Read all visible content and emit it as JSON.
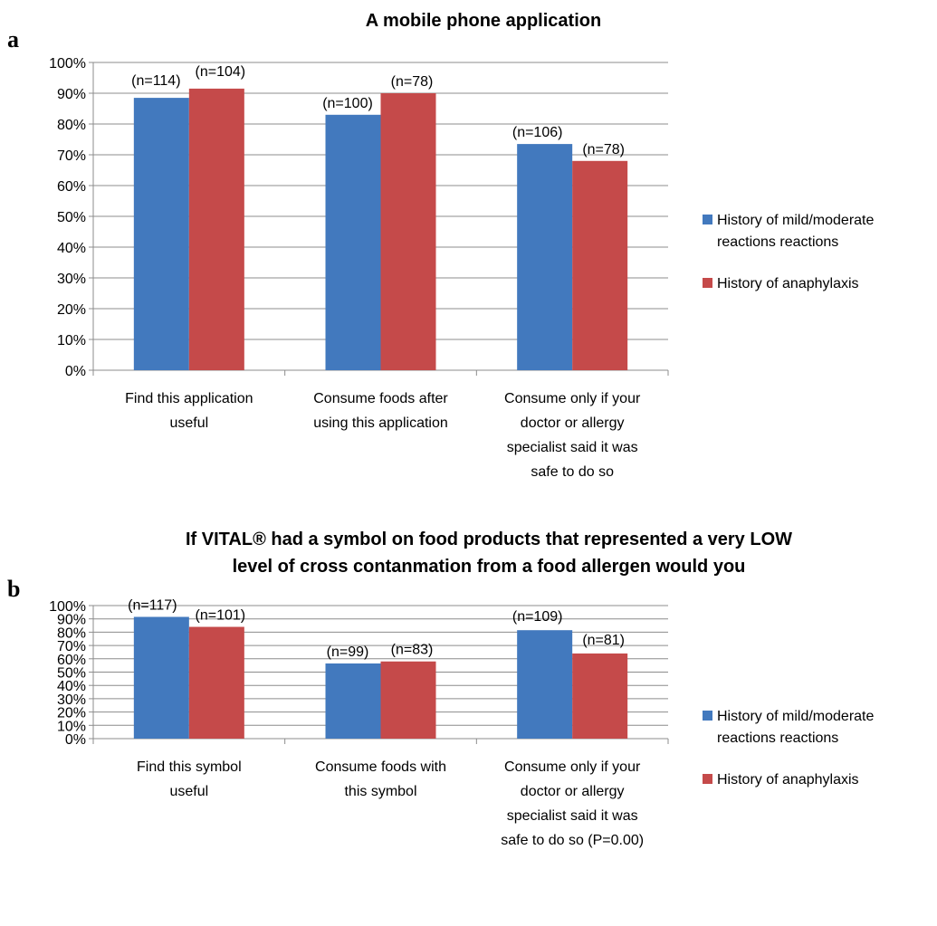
{
  "chart_data": [
    {
      "type": "bar",
      "panel": "a",
      "title": [
        "A mobile phone application"
      ],
      "categories": [
        [
          "Find this application",
          "useful"
        ],
        [
          "Consume foods after",
          "using this application"
        ],
        [
          "Consume only if your",
          "doctor or allergy",
          "specialist said it was",
          "safe to do so"
        ]
      ],
      "series": [
        {
          "name": [
            "History of mild/moderate",
            "reactions reactions"
          ],
          "color": "#4279BE",
          "values": [
            88.5,
            83,
            73.5
          ],
          "labels": [
            "(n=114)",
            "(n=100)",
            "(n=106)"
          ]
        },
        {
          "name": [
            "History of anaphylaxis"
          ],
          "color": "#C54A4A",
          "values": [
            91.5,
            90,
            68
          ],
          "labels": [
            "(n=104)",
            "(n=78)",
            "(n=78)"
          ]
        }
      ],
      "yticks": [
        "0%",
        "10%",
        "20%",
        "30%",
        "40%",
        "50%",
        "60%",
        "70%",
        "80%",
        "90%",
        "100%"
      ],
      "ylim": [
        0,
        100
      ],
      "grid": true,
      "legend_position": "right"
    },
    {
      "type": "bar",
      "panel": "b",
      "title": [
        "If VITAL® had a symbol on food products that represented a very LOW",
        "level of cross contanmation from a food allergen would you"
      ],
      "categories": [
        [
          "Find this symbol",
          "useful"
        ],
        [
          "Consume foods with",
          "this symbol"
        ],
        [
          "Consume only if your",
          "doctor or allergy",
          "specialist said it was",
          "safe to do so (P=0.00)"
        ]
      ],
      "series": [
        {
          "name": [
            "History of mild/moderate",
            "reactions reactions"
          ],
          "color": "#4279BE",
          "values": [
            91.5,
            56.5,
            81.5
          ],
          "labels": [
            "(n=117)",
            "(n=99)",
            "(n=109)"
          ]
        },
        {
          "name": [
            "History of anaphylaxis"
          ],
          "color": "#C54A4A",
          "values": [
            84,
            58,
            64
          ],
          "labels": [
            "(n=101)",
            "(n=83)",
            "(n=81)"
          ]
        }
      ],
      "yticks": [
        "0%",
        "10%",
        "20%",
        "30%",
        "40%",
        "50%",
        "60%",
        "70%",
        "80%",
        "90%",
        "100%"
      ],
      "ylim": [
        0,
        100
      ],
      "grid": true,
      "legend_position": "right"
    }
  ]
}
